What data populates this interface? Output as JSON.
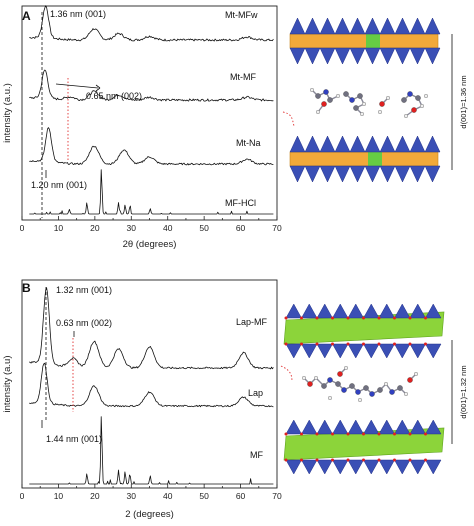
{
  "chart_data": [
    {
      "panel": "A",
      "type": "line",
      "xlabel": "2θ (degrees)",
      "ylabel": "intensity (a.u.)",
      "xlim": [
        0,
        70
      ],
      "xticks": [
        0,
        10,
        20,
        30,
        40,
        50,
        60,
        70
      ],
      "series": [
        {
          "name": "Mt-MFw",
          "peaks": [
            [
              6.5,
              1.0
            ],
            [
              19.8,
              0.35
            ],
            [
              26.6,
              0.2
            ],
            [
              35.0,
              0.12
            ],
            [
              61.8,
              0.1
            ]
          ]
        },
        {
          "name": "Mt-MF",
          "peaks": [
            [
              6.3,
              1.0
            ],
            [
              13.2,
              0.1
            ],
            [
              19.8,
              0.3
            ],
            [
              26.6,
              0.18
            ],
            [
              35.0,
              0.1
            ],
            [
              61.8,
              0.1
            ]
          ]
        },
        {
          "name": "Mt-Na",
          "peaks": [
            [
              7.3,
              0.85
            ],
            [
              19.8,
              0.45
            ],
            [
              28.0,
              0.35
            ],
            [
              35.0,
              0.18
            ],
            [
              61.8,
              0.12
            ]
          ]
        },
        {
          "name": "MF-HCl",
          "peaks": [
            [
              13.0,
              0.1
            ],
            [
              17.8,
              0.25
            ],
            [
              21.8,
              1.0
            ],
            [
              26.5,
              0.25
            ],
            [
              28.3,
              0.2
            ],
            [
              29.6,
              0.15
            ],
            [
              35.2,
              0.12
            ]
          ]
        }
      ],
      "annotations": [
        {
          "text": "1.36 nm (001)",
          "x": 6.5
        },
        {
          "text": "0.65 nm (002)",
          "x": 13.2
        },
        {
          "text": "1.20 nm (001)",
          "x": 7.3
        }
      ],
      "structure_label": "d(001)=1.36 nm"
    },
    {
      "panel": "B",
      "type": "line",
      "xlabel": "2 (degrees)",
      "ylabel": "intensity (a.u)",
      "xlim": [
        0,
        70
      ],
      "xticks": [
        0,
        10,
        20,
        30,
        40,
        50,
        60,
        70
      ],
      "series": [
        {
          "name": "Lap-MF",
          "peaks": [
            [
              6.7,
              1.0
            ],
            [
              14.0,
              0.12
            ],
            [
              19.8,
              0.35
            ],
            [
              26.5,
              0.25
            ],
            [
              35.0,
              0.28
            ],
            [
              60.8,
              0.2
            ]
          ]
        },
        {
          "name": "Lap",
          "peaks": [
            [
              6.1,
              1.0
            ],
            [
              19.8,
              0.5
            ],
            [
              35.0,
              0.35
            ],
            [
              60.8,
              0.22
            ]
          ]
        },
        {
          "name": "MF",
          "peaks": [
            [
              17.8,
              0.15
            ],
            [
              21.8,
              1.0
            ],
            [
              26.5,
              0.2
            ],
            [
              28.3,
              0.18
            ],
            [
              29.6,
              0.15
            ],
            [
              35.2,
              0.12
            ]
          ]
        }
      ],
      "annotations": [
        {
          "text": "1.32 nm (001)",
          "x": 6.7
        },
        {
          "text": "0.63 nm (002)",
          "x": 14.0
        },
        {
          "text": "1.44 nm (001)",
          "x": 6.1
        }
      ],
      "structure_label": "d(001)=1.32 nm"
    }
  ],
  "colors": {
    "tetrahedra": "#3a4fb5",
    "octahedra_mt": "#f2a93a",
    "octahedra_lap": "#8cd43a",
    "mg_substitution": "#66cc44",
    "annotation_dashed": "#e03030"
  }
}
